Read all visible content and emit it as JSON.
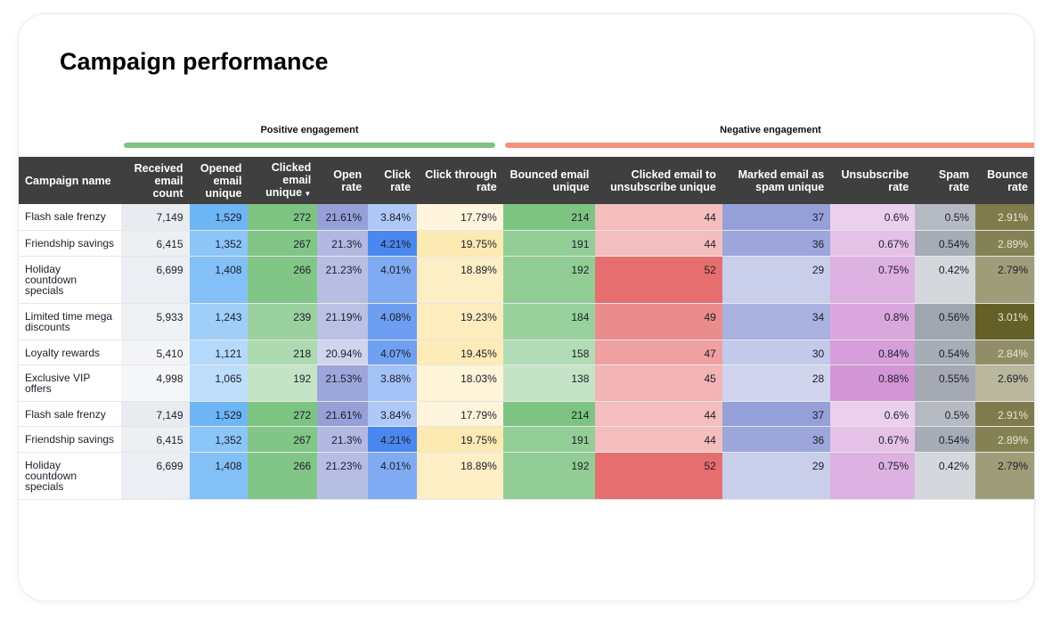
{
  "title": "Campaign performance",
  "groups": {
    "positive": "Positive engagement",
    "negative": "Negative engagement"
  },
  "colors": {
    "positive_bar": "#7dc383",
    "negative_bar": "#f8907a",
    "header_bg": "#3f3f3f"
  },
  "columns": [
    "Campaign name",
    "Received email count",
    "Opened email unique",
    "Clicked email unique",
    "Open rate",
    "Click rate",
    "Click through rate",
    "Bounced email unique",
    "Clicked email to unsubscribe unique",
    "Marked email as spam unique",
    "Unsubscribe rate",
    "Spam rate",
    "Bounce rate"
  ],
  "sort": {
    "column": "Clicked email unique",
    "direction": "descending",
    "icon": "sort-down-icon"
  },
  "rows": [
    [
      "Flash sale frenzy",
      "7,149",
      "1,529",
      "272",
      "21.61%",
      "3.84%",
      "17.79%",
      "214",
      "44",
      "37",
      "0.6%",
      "0.5%",
      "2.91%"
    ],
    [
      "Friendship savings",
      "6,415",
      "1,352",
      "267",
      "21.3%",
      "4.21%",
      "19.75%",
      "191",
      "44",
      "36",
      "0.67%",
      "0.54%",
      "2.89%"
    ],
    [
      "Holiday countdown specials",
      "6,699",
      "1,408",
      "266",
      "21.23%",
      "4.01%",
      "18.89%",
      "192",
      "52",
      "29",
      "0.75%",
      "0.42%",
      "2.79%"
    ],
    [
      "Limited time mega discounts",
      "5,933",
      "1,243",
      "239",
      "21.19%",
      "4.08%",
      "19.23%",
      "184",
      "49",
      "34",
      "0.8%",
      "0.56%",
      "3.01%"
    ],
    [
      "Loyalty rewards",
      "5,410",
      "1,121",
      "218",
      "20.94%",
      "4.07%",
      "19.45%",
      "158",
      "47",
      "30",
      "0.84%",
      "0.54%",
      "2.84%"
    ],
    [
      "Exclusive VIP offers",
      "4,998",
      "1,065",
      "192",
      "21.53%",
      "3.88%",
      "18.03%",
      "138",
      "45",
      "28",
      "0.88%",
      "0.55%",
      "2.69%"
    ],
    [
      "Flash sale frenzy",
      "7,149",
      "1,529",
      "272",
      "21.61%",
      "3.84%",
      "17.79%",
      "214",
      "44",
      "37",
      "0.6%",
      "0.5%",
      "2.91%"
    ],
    [
      "Friendship savings",
      "6,415",
      "1,352",
      "267",
      "21.3%",
      "4.21%",
      "19.75%",
      "191",
      "44",
      "36",
      "0.67%",
      "0.54%",
      "2.89%"
    ],
    [
      "Holiday countdown specials",
      "6,699",
      "1,408",
      "266",
      "21.23%",
      "4.01%",
      "18.89%",
      "192",
      "52",
      "29",
      "0.75%",
      "0.42%",
      "2.79%"
    ]
  ]
}
